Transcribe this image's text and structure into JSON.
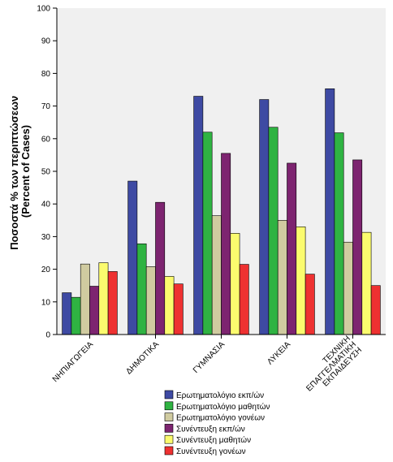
{
  "chart_data": {
    "type": "bar",
    "title": "",
    "xlabel": "",
    "ylabel_lines": [
      "Ποσοστά % των περιπτώσεων",
      "(Percent of Cases)"
    ],
    "ylim": [
      0,
      100
    ],
    "yticks": [
      0,
      10,
      20,
      30,
      40,
      50,
      60,
      70,
      80,
      90,
      100
    ],
    "grid": false,
    "legend_position": "bottom-center",
    "categories": [
      [
        "ΝΗΠΙΑΓΩΓΕΙΑ"
      ],
      [
        "ΔΗΜΟΤΙΚΑ"
      ],
      [
        "ΓΥΜΝΑΣΙΑ"
      ],
      [
        "ΛΥΚΕΙΑ"
      ],
      [
        "ΤΕΧΝΙΚΗ",
        "ΕΠΑΓΓΕΛΜΑΤΙΚΗ",
        "ΕΚΠΑΙΔΕΥΣΗ"
      ]
    ],
    "series": [
      {
        "name": "Ερωτηματολόγιο εκπ/ών",
        "color": "#3e4aa3",
        "values": [
          12.8,
          47.0,
          73.0,
          72.0,
          75.3
        ]
      },
      {
        "name": "Ερωτηματολόγιο μαθητών",
        "color": "#2fb342",
        "values": [
          11.4,
          27.8,
          62.0,
          63.5,
          61.8
        ]
      },
      {
        "name": "Ερωτηματολόγιο γονέων",
        "color": "#d0cba0",
        "values": [
          21.6,
          20.8,
          36.4,
          35.0,
          28.3
        ]
      },
      {
        "name": "Συνέντευξη εκπ/ών",
        "color": "#7d2470",
        "values": [
          14.8,
          40.5,
          55.5,
          52.5,
          53.5
        ]
      },
      {
        "name": "Συνέντευξη μαθητών",
        "color": "#fbfb6e",
        "values": [
          22.0,
          17.8,
          31.0,
          33.0,
          31.3
        ]
      },
      {
        "name": "Συνέντευξη γονέων",
        "color": "#ee3131",
        "values": [
          19.3,
          15.5,
          21.5,
          18.5,
          15.0
        ]
      }
    ]
  }
}
